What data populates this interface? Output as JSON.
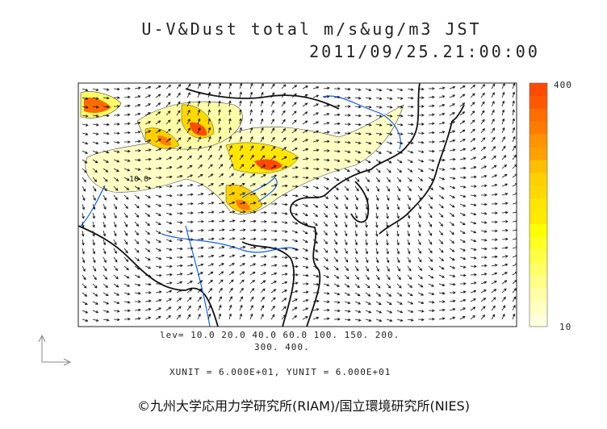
{
  "title": {
    "line1": "U-V&Dust total m/s&ug/m3 JST",
    "line2": "2011/09/25.21:00:00"
  },
  "colorbar": {
    "max_label": "400",
    "min_label": "10",
    "colors": [
      "#ff4a00",
      "#ff5800",
      "#ff6c00",
      "#ff7c00",
      "#ff9400",
      "#ffa000",
      "#ffbe00",
      "#ffd000",
      "#ffd800",
      "#ffe600",
      "#ffea00",
      "#ffff00",
      "#ffff22",
      "#ffff44",
      "#ffff66",
      "#ffff88",
      "#ffffa8",
      "#ffffc4",
      "#ffffdc"
    ]
  },
  "levels": {
    "line1": "lev= 10.0 20.0 40.0 60.0 100. 150. 200.",
    "line2": "300. 400."
  },
  "units": "XUNIT = 6.000E+01, YUNIT = 6.000E+01",
  "contour_label": "10.0",
  "credit": "©九州大学応用力学研究所(RIAM)/国立環境研究所(NIES)"
}
